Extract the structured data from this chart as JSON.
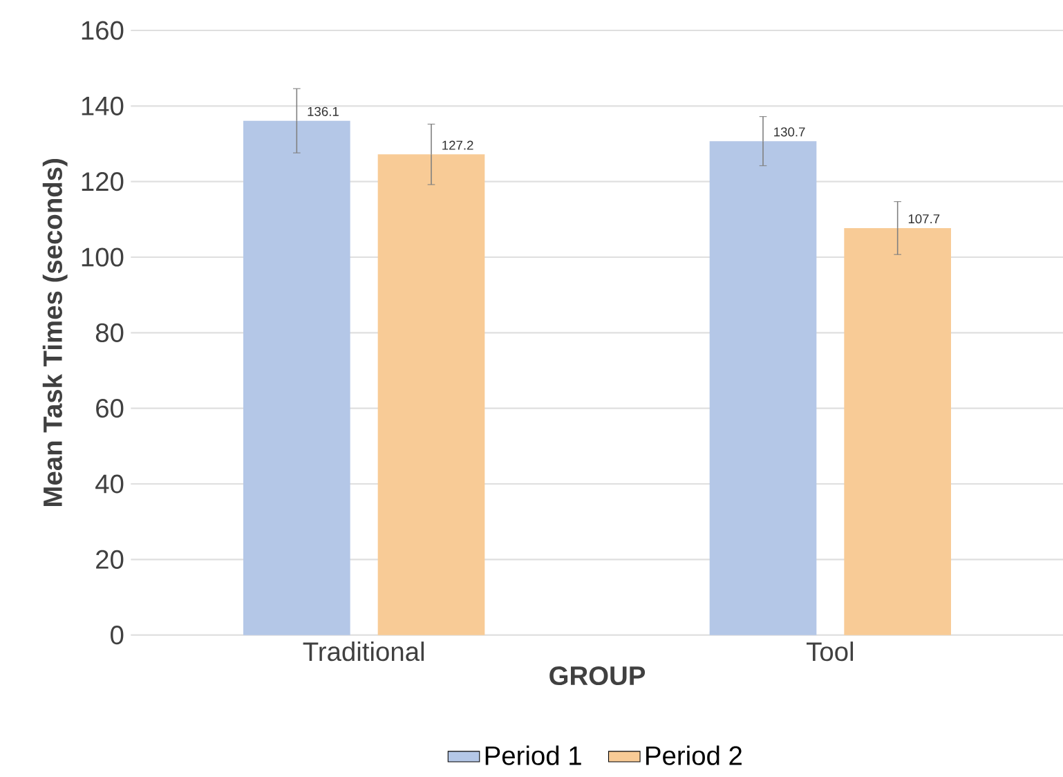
{
  "chart_data": {
    "type": "bar",
    "xlabel": "GROUP",
    "ylabel": "Mean Task Times (seconds)",
    "categories": [
      "Traditional",
      "Tool"
    ],
    "series": [
      {
        "name": "Period 1",
        "color": "#b4c7e7",
        "values": [
          136.1,
          130.7
        ],
        "errors": [
          8.5,
          6.5
        ]
      },
      {
        "name": "Period 2",
        "color": "#f8cb96",
        "values": [
          127.2,
          107.7
        ],
        "errors": [
          8,
          7
        ]
      }
    ],
    "ylim": [
      0,
      160
    ],
    "yticks": [
      0,
      20,
      40,
      60,
      80,
      100,
      120,
      140,
      160
    ],
    "grid": "y",
    "legend": "bottom",
    "data_labels": true
  }
}
